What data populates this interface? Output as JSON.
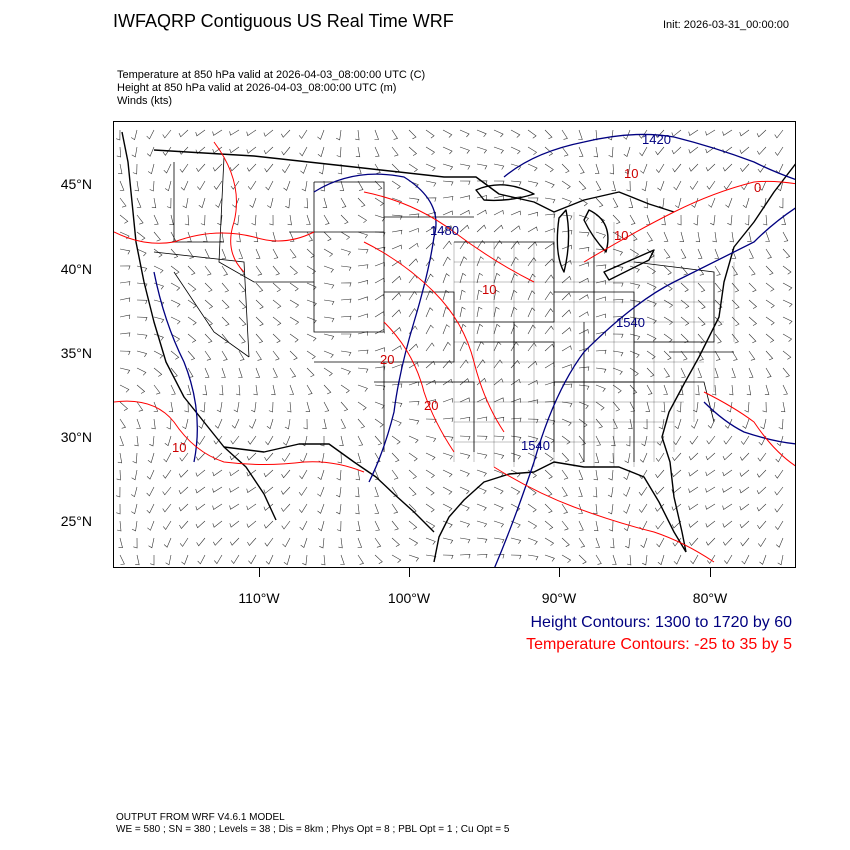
{
  "header": {
    "title": "IWFAQRP Contiguous US Real Time WRF",
    "init": "Init: 2026-03-31_00:00:00",
    "field_lines": [
      "Temperature at 850 hPa valid at 2026-04-03_08:00:00 UTC   (C)",
      "Height at 850 hPa valid at 2026-04-03_08:00:00 UTC   (m)",
      "Winds   (kts)"
    ]
  },
  "axes": {
    "lat_labels": [
      "45°N",
      "40°N",
      "35°N",
      "30°N",
      "25°N"
    ],
    "lon_labels": [
      "110°W",
      "100°W",
      "90°W",
      "80°W"
    ]
  },
  "contour_labels": {
    "height": [
      "1420",
      "1480",
      "1540",
      "1540"
    ],
    "temperature": [
      "10",
      "10",
      "20",
      "20",
      "10",
      "10",
      "0"
    ]
  },
  "legend": {
    "height": "Height Contours: 1300 to 1720 by 60",
    "temperature": "Temperature Contours: -25 to 35 by 5"
  },
  "footer": {
    "line1": "OUTPUT FROM WRF V4.6.1 MODEL",
    "line2": "WE = 580 ; SN = 380 ; Levels = 38 ; Dis = 8km ; Phys Opt = 8 ; PBL Opt = 1 ; Cu Opt = 5"
  },
  "colors": {
    "height_contour": "#000080",
    "temperature_contour": "#ff0000",
    "boundaries": "#000000"
  }
}
